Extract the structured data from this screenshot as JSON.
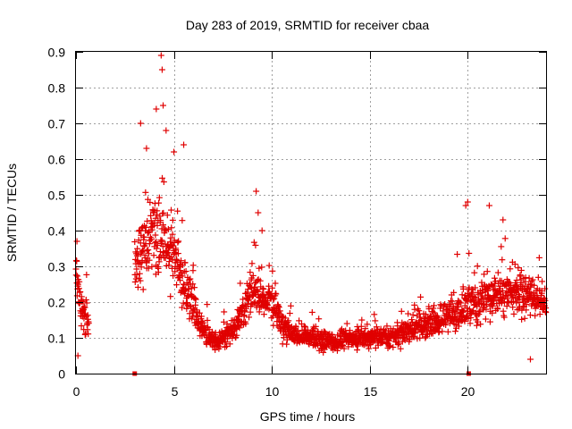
{
  "chart_data": {
    "type": "scatter",
    "title": "Day 283 of 2019, SRMTID for receiver cbaa",
    "xlabel": "GPS time / hours",
    "ylabel": "SRMTID / TECUs",
    "xlim": [
      0,
      24
    ],
    "ylim": [
      0,
      0.9
    ],
    "x_ticks": [
      0,
      5,
      10,
      15,
      20
    ],
    "y_ticks": [
      0,
      0.1,
      0.2,
      0.3,
      0.4,
      0.5,
      0.6,
      0.7,
      0.8,
      0.9
    ],
    "x_tick_labels": [
      "0",
      "5",
      "10",
      "15",
      "20"
    ],
    "y_tick_labels": [
      "0",
      "0.1",
      "0.2",
      "0.3",
      "0.4",
      "0.5",
      "0.6",
      "0.7",
      "0.8",
      "0.9"
    ],
    "grid": true,
    "color": "#e00000",
    "series": [
      {
        "name": "SRMTID",
        "marker": "plus",
        "trend": [
          [
            0.0,
            0.3
          ],
          [
            0.3,
            0.18
          ],
          [
            0.6,
            0.15
          ],
          [
            3.0,
            0.3
          ],
          [
            3.5,
            0.36
          ],
          [
            4.0,
            0.38
          ],
          [
            4.5,
            0.35
          ],
          [
            5.0,
            0.32
          ],
          [
            5.5,
            0.25
          ],
          [
            6.0,
            0.18
          ],
          [
            6.5,
            0.12
          ],
          [
            7.0,
            0.09
          ],
          [
            7.5,
            0.1
          ],
          [
            8.0,
            0.12
          ],
          [
            8.5,
            0.17
          ],
          [
            9.0,
            0.24
          ],
          [
            9.5,
            0.22
          ],
          [
            10.0,
            0.2
          ],
          [
            10.5,
            0.14
          ],
          [
            11.0,
            0.11
          ],
          [
            12.0,
            0.1
          ],
          [
            13.0,
            0.09
          ],
          [
            14.0,
            0.1
          ],
          [
            15.0,
            0.1
          ],
          [
            16.0,
            0.1
          ],
          [
            17.0,
            0.12
          ],
          [
            18.0,
            0.14
          ],
          [
            19.0,
            0.16
          ],
          [
            20.0,
            0.19
          ],
          [
            21.0,
            0.21
          ],
          [
            22.0,
            0.23
          ],
          [
            23.0,
            0.22
          ],
          [
            24.0,
            0.2
          ]
        ],
        "spread": [
          [
            0.0,
            0.09
          ],
          [
            3.0,
            0.1
          ],
          [
            4.0,
            0.16
          ],
          [
            5.0,
            0.13
          ],
          [
            6.0,
            0.07
          ],
          [
            7.0,
            0.035
          ],
          [
            8.0,
            0.05
          ],
          [
            9.0,
            0.09
          ],
          [
            10.0,
            0.06
          ],
          [
            11.0,
            0.04
          ],
          [
            15.0,
            0.04
          ],
          [
            18.0,
            0.05
          ],
          [
            20.0,
            0.09
          ],
          [
            22.0,
            0.08
          ],
          [
            24.0,
            0.07
          ]
        ],
        "peaks": [
          {
            "x": 0.05,
            "y": 0.37
          },
          {
            "x": 0.1,
            "y": 0.05
          },
          {
            "x": 3.3,
            "y": 0.7
          },
          {
            "x": 3.6,
            "y": 0.63
          },
          {
            "x": 4.1,
            "y": 0.74
          },
          {
            "x": 4.35,
            "y": 0.89
          },
          {
            "x": 4.4,
            "y": 0.85
          },
          {
            "x": 4.45,
            "y": 0.75
          },
          {
            "x": 4.6,
            "y": 0.68
          },
          {
            "x": 5.0,
            "y": 0.62
          },
          {
            "x": 5.5,
            "y": 0.64
          },
          {
            "x": 9.2,
            "y": 0.51
          },
          {
            "x": 9.3,
            "y": 0.45
          },
          {
            "x": 9.5,
            "y": 0.4
          },
          {
            "x": 19.9,
            "y": 0.47
          },
          {
            "x": 20.0,
            "y": 0.48
          },
          {
            "x": 21.1,
            "y": 0.47
          },
          {
            "x": 21.8,
            "y": 0.43
          },
          {
            "x": 23.2,
            "y": 0.04
          }
        ],
        "zero_markers": [
          3.0,
          20.05
        ]
      }
    ]
  }
}
